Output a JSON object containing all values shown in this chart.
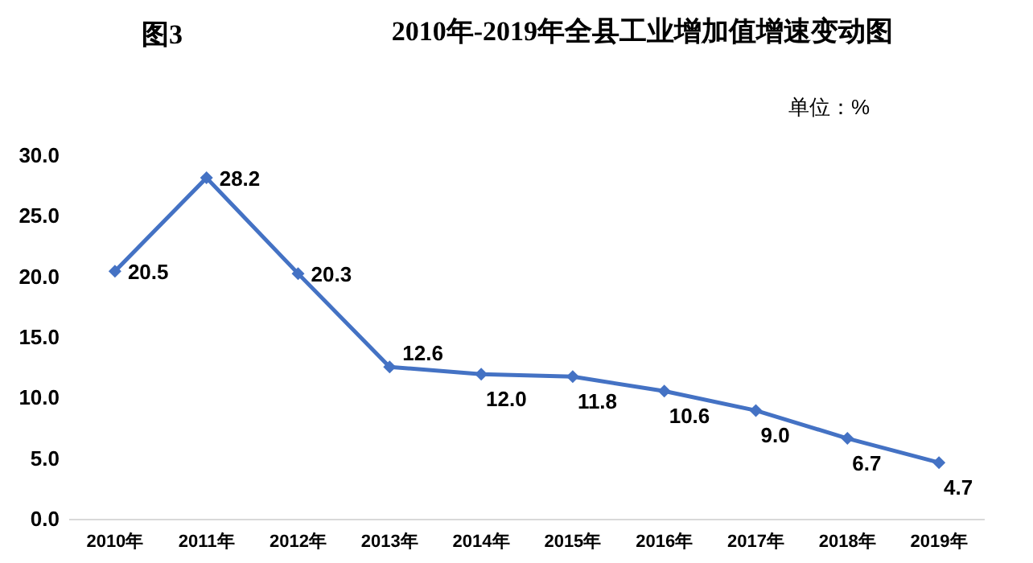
{
  "chart_data": {
    "type": "line",
    "title": "2010年-2019年全县工业增加值增速变动图",
    "annotations": [
      "图3",
      "单位：%"
    ],
    "categories": [
      "2010年",
      "2011年",
      "2012年",
      "2013年",
      "2014年",
      "2015年",
      "2016年",
      "2017年",
      "2018年",
      "2019年"
    ],
    "series": [
      {
        "color": "#4472c4",
        "values": [
          20.5,
          28.2,
          20.3,
          12.6,
          12.0,
          11.8,
          10.6,
          9.0,
          6.7,
          4.7
        ],
        "value_labels": [
          "20.5",
          "28.2",
          "20.3",
          "12.6",
          "12.0",
          "11.8",
          "10.6",
          "9.0",
          "6.7",
          "4.7"
        ]
      }
    ],
    "ylim": [
      0,
      30
    ],
    "yticks": [
      {
        "value": 0,
        "label": "0.0"
      },
      {
        "value": 5,
        "label": "5.0"
      },
      {
        "value": 10,
        "label": "10.0"
      },
      {
        "value": 15,
        "label": "15.0"
      },
      {
        "value": 20,
        "label": "20.0"
      },
      {
        "value": 25,
        "label": "25.0"
      },
      {
        "value": 30,
        "label": "30.0"
      }
    ],
    "marker": "diamond",
    "line_style": "solid",
    "grid": false
  }
}
